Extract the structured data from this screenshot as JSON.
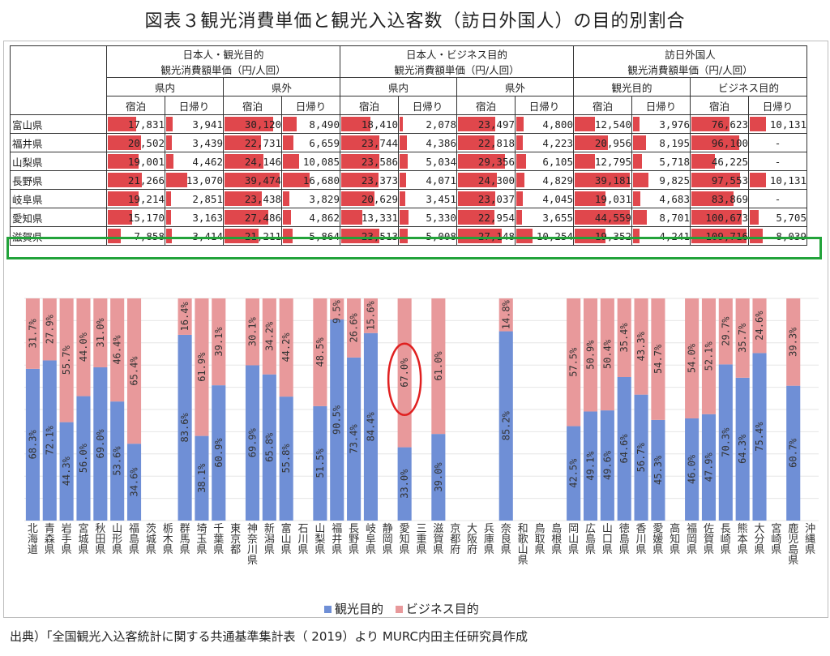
{
  "title": "図表３観光消費単価と観光入込客数（訪日外国人）の目的別割合",
  "table": {
    "group_headers": [
      {
        "line1": "日本人・観光目的",
        "line2": "観光消費額単価（円/人回）"
      },
      {
        "line1": "日本人・ビジネス目的",
        "line2": "観光消費額単価（円/人回）"
      },
      {
        "line1": "訪日外国人",
        "line2": "観光消費額単価（円/人回）"
      }
    ],
    "sub_headers": [
      "県内",
      "県外",
      "県内",
      "県外",
      "観光目的",
      "ビジネス目的"
    ],
    "col_headers": [
      "宿泊",
      "日帰り",
      "宿泊",
      "日帰り",
      "宿泊",
      "日帰り",
      "宿泊",
      "日帰り",
      "宿泊",
      "日帰り",
      "宿泊",
      "日帰り"
    ],
    "rows": [
      {
        "pref": "富山県",
        "cells": [
          "17,831",
          "3,941",
          "30,120",
          "8,490",
          "18,410",
          "2,078",
          "23,497",
          "4,800",
          "12,540",
          "3,976",
          "76,623",
          "10,131"
        ]
      },
      {
        "pref": "福井県",
        "cells": [
          "20,502",
          "3,439",
          "22,731",
          "6,659",
          "23,744",
          "4,386",
          "22,818",
          "4,223",
          "20,956",
          "8,195",
          "96,100",
          "-"
        ]
      },
      {
        "pref": "山梨県",
        "cells": [
          "19,001",
          "4,462",
          "24,146",
          "10,085",
          "23,586",
          "5,034",
          "29,356",
          "6,105",
          "12,795",
          "5,718",
          "46,225",
          "-"
        ]
      },
      {
        "pref": "長野県",
        "cells": [
          "21,266",
          "13,070",
          "39,474",
          "16,680",
          "23,373",
          "4,071",
          "24,300",
          "4,829",
          "39,181",
          "9,825",
          "97,553",
          "10,131"
        ]
      },
      {
        "pref": "岐阜県",
        "cells": [
          "19,214",
          "2,851",
          "23,438",
          "3,829",
          "20,629",
          "3,451",
          "23,037",
          "4,045",
          "19,031",
          "4,683",
          "83,869",
          "-"
        ]
      },
      {
        "pref": "愛知県",
        "cells": [
          "15,170",
          "3,163",
          "27,486",
          "4,862",
          "13,331",
          "5,330",
          "22,954",
          "3,655",
          "44,559",
          "8,701",
          "100,673",
          "5,705"
        ]
      },
      {
        "pref": "滋賀県",
        "cells": [
          "7,858",
          "3,414",
          "21,211",
          "5,864",
          "23,513",
          "5,008",
          "27,148",
          "10,254",
          "19,352",
          "4,241",
          "109,716",
          "8,039"
        ]
      }
    ]
  },
  "chart_data": {
    "type": "bar",
    "stacked": true,
    "ylim": [
      0,
      100
    ],
    "categories": [
      "北海道",
      "青森県",
      "岩手県",
      "宮城県",
      "秋田県",
      "山形県",
      "福島県",
      "茨城県",
      "栃木県",
      "群馬県",
      "埼玉県",
      "千葉県",
      "東京都",
      "神奈川県",
      "新潟県",
      "富山県",
      "石川県",
      "山梨県",
      "福井県",
      "長野県",
      "岐阜県",
      "静岡県",
      "愛知県",
      "三重県",
      "滋賀県",
      "京都府",
      "大阪府",
      "兵庫県",
      "奈良県",
      "和歌山県",
      "鳥取県",
      "島根県",
      "岡山県",
      "広島県",
      "山口県",
      "徳島県",
      "香川県",
      "愛媛県",
      "高知県",
      "福岡県",
      "佐賀県",
      "長崎県",
      "熊本県",
      "大分県",
      "宮崎県",
      "鹿児島県",
      "沖縄県"
    ],
    "series": [
      {
        "name": "観光目的",
        "color": "#6f8fd6",
        "values": [
          68.3,
          72.1,
          44.3,
          56.0,
          69.0,
          53.6,
          34.6,
          null,
          null,
          83.6,
          38.1,
          60.9,
          null,
          69.9,
          65.8,
          55.8,
          null,
          51.5,
          90.5,
          73.4,
          84.4,
          null,
          33.0,
          null,
          39.0,
          null,
          null,
          null,
          85.2,
          null,
          null,
          null,
          42.5,
          49.1,
          49.6,
          64.6,
          56.7,
          45.3,
          null,
          46.0,
          47.9,
          70.3,
          64.3,
          75.4,
          null,
          60.7,
          null
        ],
        "labels": [
          "68.3%",
          "72.1%",
          "44.3%",
          "56.0%",
          "69.0%",
          "53.6%",
          "34.6%",
          "",
          "",
          "83.6%",
          "38.1%",
          "60.9%",
          "",
          "69.9%",
          "65.8%",
          "55.8%",
          "",
          "51.5%",
          "90.5%",
          "73.4%",
          "84.4%",
          "",
          "33.0%",
          "",
          "39.0%",
          "",
          "",
          "",
          "85.2%",
          "",
          "",
          "",
          "42.5%",
          "49.1%",
          "49.6%",
          "64.6%",
          "56.7%",
          "45.3%",
          "",
          "46.0%",
          "47.9%",
          "70.3%",
          "64.3%",
          "75.4%",
          "",
          "60.7%",
          ""
        ]
      },
      {
        "name": "ビジネス目的",
        "color": "#e8999b",
        "values": [
          31.7,
          27.9,
          55.7,
          44.0,
          31.0,
          46.4,
          65.4,
          null,
          null,
          16.4,
          61.9,
          39.1,
          null,
          30.1,
          34.2,
          44.2,
          null,
          48.5,
          9.5,
          26.6,
          15.6,
          null,
          67.0,
          null,
          61.0,
          null,
          null,
          null,
          14.8,
          null,
          null,
          null,
          57.5,
          50.9,
          50.4,
          35.4,
          43.3,
          54.7,
          null,
          54.0,
          52.1,
          29.7,
          35.7,
          24.6,
          null,
          39.3,
          null
        ],
        "labels": [
          "31.7%",
          "27.9%",
          "55.7%",
          "44.0%",
          "31.0%",
          "46.4%",
          "65.4%",
          "",
          "",
          "16.4%",
          "61.9%",
          "39.1%",
          "",
          "30.1%",
          "34.2%",
          "44.2%",
          "",
          "48.5%",
          "9.5%",
          "26.6%",
          "15.6%",
          "",
          "67.0%",
          "",
          "61.0%",
          "",
          "",
          "",
          "14.8%",
          "",
          "",
          "",
          "57.5%",
          "50.9%",
          "50.4%",
          "35.4%",
          "43.3%",
          "54.7%",
          "",
          "54.0%",
          "52.1%",
          "29.7%",
          "35.7%",
          "24.6%",
          "",
          "39.3%",
          ""
        ]
      }
    ],
    "highlight_row": "愛知県",
    "circled_label": "67.0%",
    "grid": true
  },
  "legend": {
    "item1": "観光目的",
    "item2": "ビジネス目的"
  },
  "source": "出典）「全国観光入込客統計に関する共通基準集計表（ 2019）より MURC内田主任研究員作成",
  "colors": {
    "table_bar": "#e0474c",
    "highlight_border": "#22a33a",
    "circle": "#e02020"
  }
}
